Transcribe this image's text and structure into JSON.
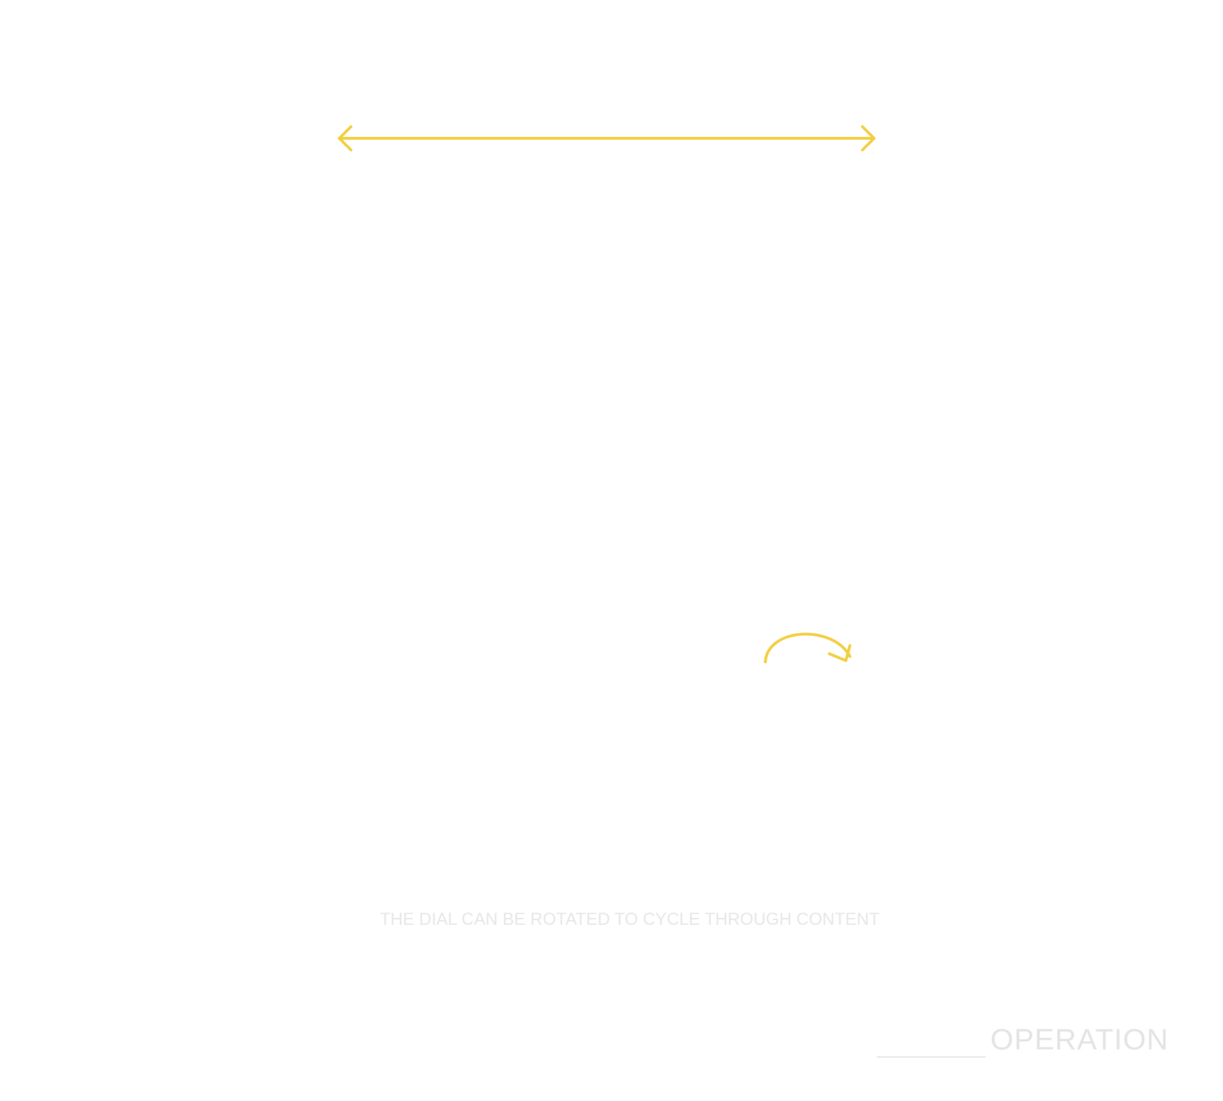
{
  "diagram": {
    "caption": "THE DIAL CAN BE ROTATED TO CYCLE THROUGH CONTENT",
    "section_label": "OPERATION"
  },
  "icons": {
    "horizontal_arrow": "double-headed-horizontal-arrow-icon",
    "rotate_arrow": "clockwise-rotate-arrow-icon"
  },
  "colors": {
    "background": "#ffffff",
    "accent": "#f2cd3c",
    "caption_text": "#e6e6e6",
    "label_text": "#e3e3e3",
    "rule": "#e6e6e6"
  }
}
